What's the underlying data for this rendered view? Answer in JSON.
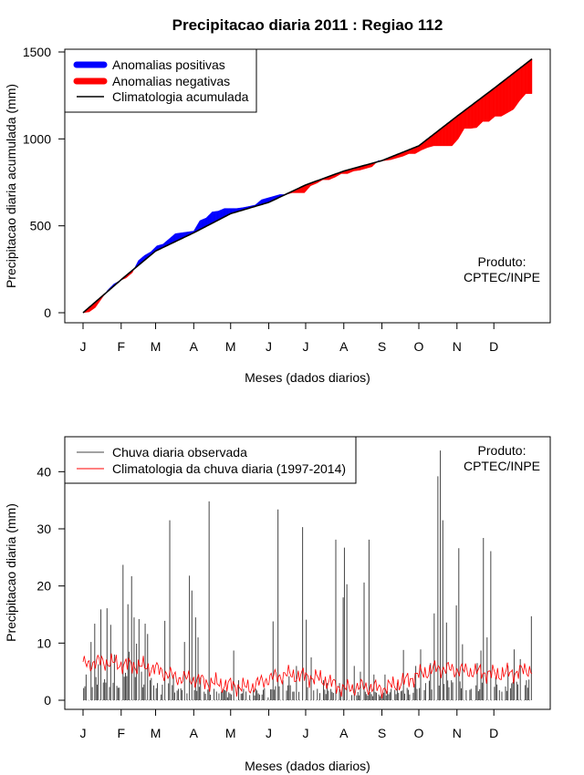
{
  "title": "Precipitacao diaria 2011 : Regiao 112",
  "colors": {
    "positive": "#0000ff",
    "negative": "#ff0000",
    "climatology": "#000000",
    "observed": "#444444",
    "clim_daily": "#ff0000"
  },
  "months": [
    "J",
    "F",
    "M",
    "A",
    "M",
    "J",
    "J",
    "A",
    "S",
    "O",
    "N",
    "D"
  ],
  "chart_data": [
    {
      "type": "area",
      "title": "Precipitacao diaria 2011 : Regiao 112",
      "xlabel": "Meses (dados diarios)",
      "ylabel": "Precipitacao diaria acumulada (mm)",
      "xlim": [
        0,
        365
      ],
      "ylim": [
        0,
        1500
      ],
      "yticks": [
        0,
        500,
        1000,
        1500
      ],
      "legend": [
        "Anomalias positivas",
        "Anomalias negativas",
        "Climatologia acumulada"
      ],
      "product_label": "Produto:",
      "product_source": "CPTEC/INPE",
      "climatology_cumulative": {
        "x": [
          0,
          31,
          59,
          90,
          120,
          151,
          181,
          212,
          243,
          273,
          304,
          334,
          365
        ],
        "y": [
          0,
          190,
          355,
          460,
          570,
          635,
          735,
          815,
          875,
          960,
          1130,
          1290,
          1460
        ]
      },
      "observed_cumulative": {
        "x": [
          0,
          5,
          10,
          15,
          20,
          25,
          30,
          35,
          40,
          45,
          50,
          55,
          60,
          65,
          70,
          75,
          80,
          85,
          90,
          95,
          100,
          105,
          110,
          115,
          120,
          125,
          130,
          135,
          140,
          145,
          150,
          155,
          160,
          165,
          170,
          175,
          180,
          185,
          190,
          195,
          200,
          205,
          210,
          215,
          220,
          225,
          230,
          235,
          240,
          245,
          250,
          255,
          260,
          265,
          270,
          275,
          280,
          285,
          290,
          295,
          300,
          305,
          310,
          315,
          320,
          325,
          330,
          335,
          340,
          345,
          350,
          355,
          360,
          365
        ],
        "y": [
          0,
          5,
          30,
          80,
          130,
          165,
          185,
          200,
          230,
          300,
          330,
          350,
          385,
          395,
          425,
          455,
          460,
          465,
          470,
          530,
          545,
          580,
          585,
          600,
          600,
          600,
          605,
          612,
          620,
          650,
          660,
          670,
          680,
          680,
          690,
          690,
          690,
          730,
          745,
          765,
          765,
          780,
          800,
          800,
          815,
          820,
          830,
          840,
          875,
          875,
          880,
          890,
          900,
          915,
          915,
          935,
          950,
          960,
          960,
          960,
          960,
          1000,
          1060,
          1060,
          1065,
          1100,
          1100,
          1130,
          1130,
          1150,
          1170,
          1220,
          1260,
          1260
        ]
      }
    },
    {
      "type": "bar",
      "xlabel": "Meses (dados diarios)",
      "ylabel": "Precipitacao diaria (mm)",
      "xlim": [
        0,
        365
      ],
      "ylim": [
        0,
        45
      ],
      "yticks": [
        0,
        10,
        20,
        30,
        40
      ],
      "legend": [
        "Chuva diaria observada",
        "Climatologia da chuva diaria (1997-2014)"
      ],
      "product_label": "Produto:",
      "product_source": "CPTEC/INPE",
      "observed_peaks": {
        "day": [
          2,
          6,
          9,
          12,
          14,
          16,
          19,
          22,
          25,
          29,
          32,
          34,
          36,
          37,
          39,
          41,
          43,
          45,
          47,
          50,
          52,
          54,
          57,
          60,
          63,
          66,
          70,
          73,
          77,
          82,
          86,
          88,
          91,
          93,
          95,
          98,
          102,
          106,
          110,
          117,
          122,
          126,
          130,
          140,
          145,
          150,
          154,
          158,
          162,
          167,
          170,
          173,
          178,
          181,
          185,
          190,
          195,
          198,
          205,
          208,
          211,
          212,
          214,
          220,
          225,
          228,
          232,
          236,
          240,
          245,
          250,
          255,
          260,
          265,
          270,
          274,
          278,
          282,
          285,
          288,
          290,
          292,
          295,
          299,
          303,
          305,
          308,
          315,
          320,
          323,
          325,
          328,
          331,
          335,
          340,
          345,
          350,
          355,
          360,
          364
        ],
        "mm": [
          4.5,
          10.2,
          13.4,
          6.3,
          15.9,
          3.1,
          16.1,
          13.2,
          8.0,
          2.2,
          23.7,
          4.8,
          16.8,
          8.5,
          21.7,
          14.5,
          9.9,
          14.2,
          5.0,
          13.4,
          11.6,
          3.5,
          2.6,
          3.0,
          1.0,
          13.9,
          31.5,
          4.4,
          2.0,
          10.2,
          21.8,
          19.2,
          14.5,
          11.0,
          4.0,
          1.5,
          34.8,
          2.0,
          1.2,
          0.5,
          8.7,
          3.5,
          2.0,
          2.0,
          1.0,
          0.5,
          13.8,
          33.4,
          3.5,
          4.2,
          1.5,
          6.0,
          30.3,
          14.1,
          7.5,
          2.0,
          3.5,
          3.0,
          28.1,
          3.0,
          18.0,
          26.7,
          20.3,
          6.0,
          5.0,
          20.6,
          28.1,
          4.5,
          1.0,
          4.5,
          2.0,
          3.0,
          8.8,
          1.0,
          6.0,
          8.9,
          3.0,
          6.5,
          15.2,
          39.2,
          43.7,
          31.5,
          13.6,
          3.5,
          16.6,
          26.6,
          9.8,
          2.0,
          6.5,
          8.7,
          28.4,
          11.0,
          26.1,
          4.0,
          1.5,
          6.0,
          8.9,
          7.2,
          3.5,
          14.7
        ]
      },
      "climatology_daily_profile": {
        "x": [
          0,
          15,
          31,
          45,
          59,
          75,
          90,
          105,
          120,
          135,
          151,
          165,
          181,
          195,
          212,
          228,
          243,
          258,
          273,
          288,
          304,
          320,
          334,
          350,
          365
        ],
        "y": [
          6.2,
          6.8,
          6.3,
          6.0,
          5.5,
          4.0,
          3.7,
          3.0,
          2.6,
          2.2,
          3.8,
          4.5,
          4.2,
          3.6,
          2.0,
          2.4,
          2.0,
          3.0,
          4.5,
          5.6,
          5.3,
          5.0,
          4.6,
          4.8,
          5.5
        ]
      }
    }
  ]
}
